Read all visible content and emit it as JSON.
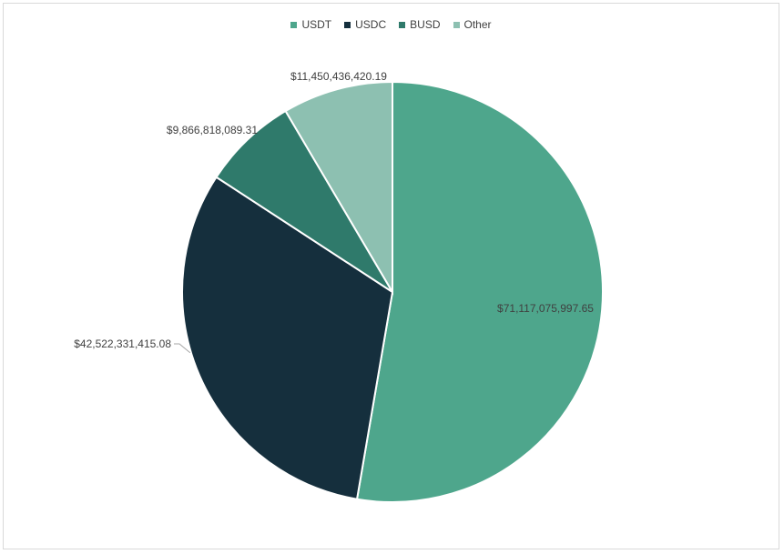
{
  "chart_data": {
    "type": "pie",
    "title": "",
    "legend_position": "top",
    "slices": [
      {
        "name": "USDT",
        "label": "USDT",
        "value": 71117075997.65,
        "value_label": "$71,117,075,997.65",
        "color": "#4ea68c"
      },
      {
        "name": "USDC",
        "label": "USDC",
        "value": 42522331415.08,
        "value_label": "$42,522,331,415.08",
        "color": "#152f3d"
      },
      {
        "name": "BUSD",
        "label": "BUSD",
        "value": 9866818089.31,
        "value_label": "$9,866,818,089.31",
        "color": "#2f7a6b"
      },
      {
        "name": "Other",
        "label": "Other",
        "value": 11450436420.19,
        "value_label": "$11,450,436,420.19",
        "color": "#8dc0b1"
      }
    ]
  }
}
